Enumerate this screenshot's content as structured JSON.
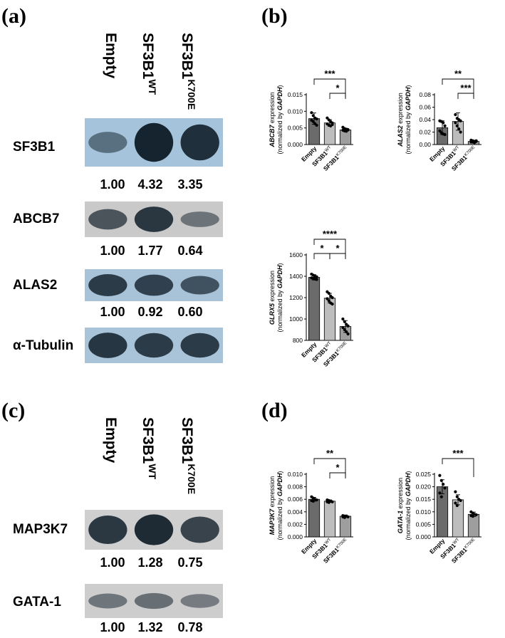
{
  "panels": {
    "a": "(a)",
    "b": "(b)",
    "c": "(c)",
    "d": "(d)"
  },
  "lanes_a": {
    "empty": "Empty",
    "wt_main": "SF3B1",
    "wt_sup": "WT",
    "mut_main": "SF3B1",
    "mut_sup": "K700E"
  },
  "lanes_c": {
    "empty": "Empty",
    "wt_main": "SF3B1",
    "wt_sup": "WT",
    "mut_main": "SF3B1",
    "mut_sup": "K700E"
  },
  "blots_a": [
    {
      "protein": "SF3B1",
      "background": "#a5c3da",
      "quant": [
        "1.00",
        "4.32",
        "3.35"
      ],
      "intensity": [
        0.35,
        1.0,
        0.9
      ]
    },
    {
      "protein": "ABCB7",
      "background": "#c9c9c9",
      "quant": [
        "1.00",
        "1.77",
        "0.64"
      ],
      "intensity": [
        0.6,
        0.85,
        0.35
      ]
    },
    {
      "protein": "ALAS2",
      "background": "#a8c2d8",
      "quant": [
        "1.00",
        "0.92",
        "0.60"
      ],
      "intensity": [
        0.8,
        0.75,
        0.6
      ]
    },
    {
      "protein": "α-Tubulin",
      "background": "#a9c3d8",
      "quant": [],
      "intensity": [
        0.85,
        0.8,
        0.8
      ]
    }
  ],
  "blots_c": [
    {
      "protein": "MAP3K7",
      "background": "#cfcfcf",
      "quant": [
        "1.00",
        "1.28",
        "0.75"
      ],
      "intensity": [
        0.85,
        0.95,
        0.75
      ]
    },
    {
      "protein": "GATA-1",
      "background": "#cdcdcd",
      "quant": [
        "1.00",
        "1.32",
        "0.78"
      ],
      "intensity": [
        0.35,
        0.4,
        0.3
      ]
    }
  ],
  "chart_data": [
    {
      "type": "bar",
      "gene": "ABCB7",
      "ylabel_line1": " expression",
      "ylabel_line2": "(normalized by ",
      "ylabel_gene2": "GAPDH",
      "ylabel_end": ")",
      "categories": [
        "Empty",
        "SF3B1",
        "SF3B1"
      ],
      "category_sup": [
        "",
        "WT",
        "K700E"
      ],
      "values": [
        0.0078,
        0.0065,
        0.0044
      ],
      "errors": [
        0.0017,
        0.001,
        0.0005
      ],
      "points": [
        [
          0.0096,
          0.0087,
          0.008,
          0.0077,
          0.0073,
          0.0069,
          0.0063,
          0.0058
        ],
        [
          0.008,
          0.0074,
          0.0069,
          0.0065,
          0.0062,
          0.0058,
          0.0056,
          0.006
        ],
        [
          0.0052,
          0.0048,
          0.0046,
          0.0044,
          0.0043,
          0.0041,
          0.004,
          0.0045
        ]
      ],
      "colors": [
        "#6b6b6b",
        "#bdbdbd",
        "#9e9e9e"
      ],
      "ylim": [
        0,
        0.015
      ],
      "ticks": [
        "0.000",
        "0.005",
        "0.010",
        "0.015"
      ],
      "tick_values": [
        0,
        0.005,
        0.01,
        0.015
      ],
      "brackets": [
        {
          "from": 0,
          "to": 2,
          "label": "***"
        },
        {
          "from": 1,
          "to": 2,
          "label": "*"
        }
      ]
    },
    {
      "type": "bar",
      "gene": "ALAS2",
      "ylabel_line1": " expression",
      "ylabel_line2": "(normalized by ",
      "ylabel_gene2": "GAPDH",
      "ylabel_end": ")",
      "categories": [
        "Empty",
        "SF3B1",
        "SF3B1"
      ],
      "category_sup": [
        "",
        "WT",
        "K700E"
      ],
      "values": [
        0.027,
        0.037,
        0.005
      ],
      "errors": [
        0.011,
        0.014,
        0.002
      ],
      "points": [
        [
          0.038,
          0.037,
          0.035,
          0.03,
          0.022,
          0.019,
          0.017,
          0.016
        ],
        [
          0.048,
          0.042,
          0.04,
          0.038,
          0.035,
          0.03,
          0.025,
          0.02
        ],
        [
          0.007,
          0.006,
          0.005,
          0.005,
          0.004,
          0.004,
          0.003,
          0.006
        ]
      ],
      "colors": [
        "#6b6b6b",
        "#bdbdbd",
        "#9e9e9e"
      ],
      "ylim": [
        0,
        0.08
      ],
      "ticks": [
        "0.00",
        "0.02",
        "0.04",
        "0.06",
        "0.08"
      ],
      "tick_values": [
        0,
        0.02,
        0.04,
        0.06,
        0.08
      ],
      "brackets": [
        {
          "from": 0,
          "to": 2,
          "label": "**"
        },
        {
          "from": 1,
          "to": 2,
          "label": "***"
        }
      ]
    },
    {
      "type": "bar",
      "gene": "GLRX5",
      "ylabel_line1": " expression",
      "ylabel_line2": "(normalized by ",
      "ylabel_gene2": "GAPDH",
      "ylabel_end": ")",
      "categories": [
        "Empty",
        "SF3B1",
        "SF3B1"
      ],
      "category_sup": [
        "",
        "WT",
        "K700E"
      ],
      "values": [
        1390,
        1195,
        930
      ],
      "errors": [
        25,
        45,
        55
      ],
      "points": [
        [
          1420,
          1410,
          1400,
          1395,
          1385,
          1380,
          1375,
          1370
        ],
        [
          1255,
          1240,
          1215,
          1200,
          1190,
          1170,
          1150,
          1140
        ],
        [
          1000,
          975,
          950,
          935,
          920,
          900,
          880,
          860
        ]
      ],
      "colors": [
        "#6b6b6b",
        "#bdbdbd",
        "#9e9e9e"
      ],
      "ylim": [
        800,
        1600
      ],
      "ticks": [
        "800",
        "1000",
        "1200",
        "1400",
        "1600"
      ],
      "tick_values": [
        800,
        1000,
        1200,
        1400,
        1600
      ],
      "brackets": [
        {
          "from": 0,
          "to": 2,
          "label": "****"
        },
        {
          "from": 0,
          "to": 1,
          "label": "*"
        },
        {
          "from": 1,
          "to": 2,
          "label": "*"
        }
      ]
    },
    {
      "type": "bar",
      "gene": "MAP3K7",
      "ylabel_line1": " expression",
      "ylabel_line2": "(normalized by ",
      "ylabel_gene2": "GAPDH",
      "ylabel_end": ")",
      "categories": [
        "Empty",
        "SF3B1",
        "SF3B1"
      ],
      "category_sup": [
        "",
        "WT",
        "K700E"
      ],
      "values": [
        0.006,
        0.0057,
        0.0033
      ],
      "errors": [
        0.0003,
        0.0002,
        0.0002
      ],
      "points": [
        [
          0.0064,
          0.0062,
          0.006,
          0.0059,
          0.0058,
          0.0057
        ],
        [
          0.0059,
          0.0058,
          0.0057,
          0.0056,
          0.0056,
          0.0055
        ],
        [
          0.0034,
          0.0033,
          0.0033,
          0.0032,
          0.0032,
          0.0031
        ]
      ],
      "colors": [
        "#6b6b6b",
        "#bdbdbd",
        "#9e9e9e"
      ],
      "ylim": [
        0,
        0.01
      ],
      "ticks": [
        "0.000",
        "0.002",
        "0.004",
        "0.006",
        "0.008",
        "0.010"
      ],
      "tick_values": [
        0,
        0.002,
        0.004,
        0.006,
        0.008,
        0.01
      ],
      "brackets": [
        {
          "from": 0,
          "to": 2,
          "label": "**"
        },
        {
          "from": 1,
          "to": 2,
          "label": "*"
        }
      ]
    },
    {
      "type": "bar",
      "gene": "GATA-1",
      "ylabel_line1": " expression",
      "ylabel_line2": "(normalized by ",
      "ylabel_gene2": "GAPDH",
      "ylabel_end": ")",
      "categories": [
        "Empty",
        "SF3B1",
        "SF3B1"
      ],
      "category_sup": [
        "",
        "WT",
        "K700E"
      ],
      "values": [
        0.02,
        0.0148,
        0.009
      ],
      "errors": [
        0.0028,
        0.002,
        0.0009
      ],
      "points": [
        [
          0.0245,
          0.0225,
          0.021,
          0.0195,
          0.0175,
          0.016
        ],
        [
          0.018,
          0.016,
          0.015,
          0.0145,
          0.0135,
          0.0125
        ],
        [
          0.01,
          0.0095,
          0.009,
          0.0088,
          0.0085,
          0.0082
        ]
      ],
      "colors": [
        "#6b6b6b",
        "#bdbdbd",
        "#9e9e9e"
      ],
      "ylim": [
        0,
        0.025
      ],
      "ticks": [
        "0.000",
        "0.005",
        "0.010",
        "0.015",
        "0.020",
        "0.025"
      ],
      "tick_values": [
        0,
        0.005,
        0.01,
        0.015,
        0.02,
        0.025
      ],
      "brackets": [
        {
          "from": 0,
          "to": 2,
          "label": "***"
        }
      ]
    }
  ]
}
